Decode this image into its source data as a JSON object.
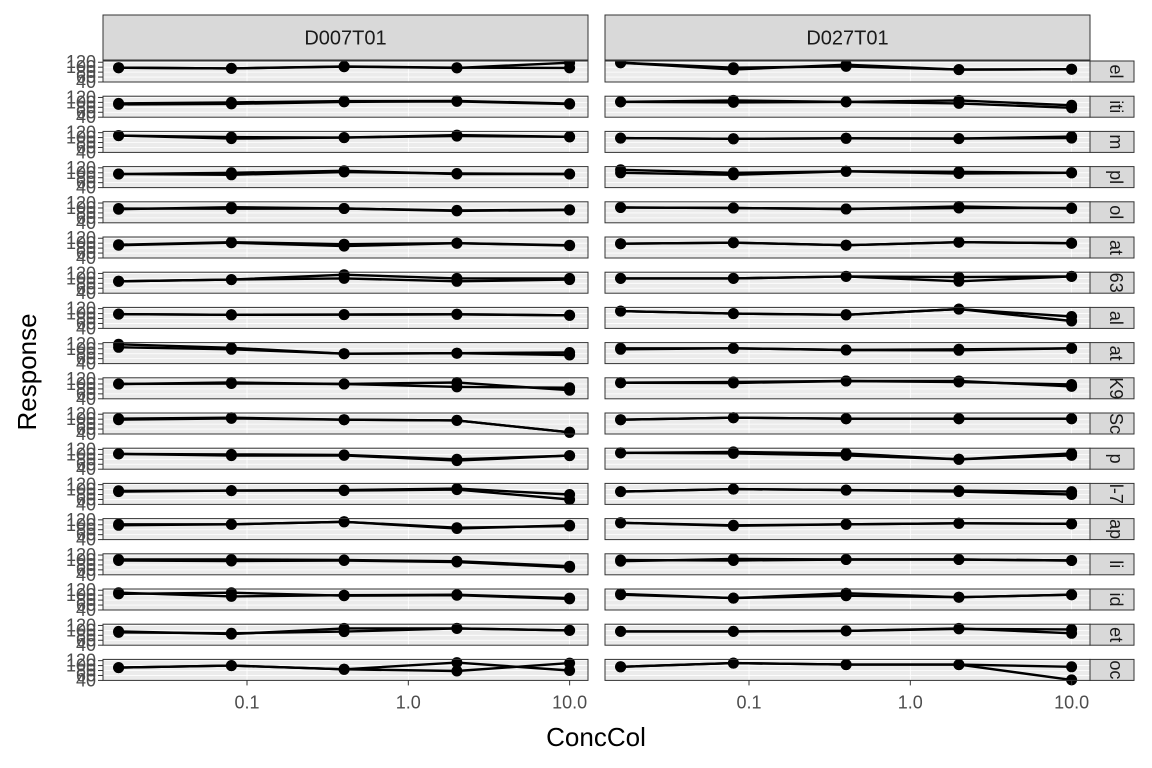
{
  "chart_data": {
    "type": "line",
    "xlabel": "ConcCol",
    "ylabel": "Response",
    "x_scale": "log10",
    "xlim": [
      0.0128,
      13
    ],
    "ylim": [
      40,
      125
    ],
    "x_ticks": [
      0.1,
      1.0,
      10.0
    ],
    "x_tick_labels": [
      "0.1",
      "1.0",
      "10.0"
    ],
    "y_ticks": [
      40,
      60,
      80,
      100,
      120
    ],
    "y_tick_labels": [
      "40",
      "60",
      "80",
      "100",
      "120"
    ],
    "concentrations": [
      0.016,
      0.08,
      0.4,
      2.0,
      10.0
    ],
    "grid": true,
    "legend": "none",
    "colors": {
      "panel_bg": "#ebebeb",
      "strip_bg": "#d9d9d9",
      "border": "#333333",
      "grid_major": "#ffffff",
      "line": "#000000"
    },
    "column_facets": [
      "D007T01",
      "D027T01"
    ],
    "row_facets": [
      "el",
      "iti",
      "m",
      "pl",
      "ol",
      "at",
      "63",
      "al",
      "at",
      "K9",
      "Sc",
      "p",
      "l-7",
      "ap",
      "li",
      "id",
      "et",
      "oc"
    ],
    "panels": [
      [
        {
          "series": [
            [
              98,
              95,
              103,
              98,
              97
            ],
            [
              98,
              95,
              102,
              97,
              118
            ]
          ]
        },
        {
          "series": [
            [
              96,
              100,
              105,
              106,
              95
            ],
            [
              92,
              94,
              102,
              104,
              93
            ]
          ]
        },
        {
          "series": [
            [
              108,
              96,
              100,
              106,
              103
            ],
            [
              108,
              102,
              100,
              110,
              103
            ]
          ]
        },
        {
          "series": [
            [
              95,
              100,
              108,
              95,
              95
            ],
            [
              95,
              92,
              103,
              97,
              95
            ]
          ]
        },
        {
          "series": [
            [
              95,
              103,
              98,
              88,
              92
            ],
            [
              98,
              97,
              98,
              90,
              93
            ]
          ]
        },
        {
          "series": [
            [
              92,
              102,
              88,
              100,
              92
            ],
            [
              94,
              104,
              96,
              100,
              90
            ]
          ]
        },
        {
          "series": [
            [
              88,
              95,
              115,
              100,
              100
            ],
            [
              88,
              95,
              100,
              88,
              95
            ]
          ]
        },
        {
          "series": [
            [
              98,
              95,
              96,
              97,
              93
            ],
            [
              98,
              95,
              96,
              97,
              93
            ]
          ]
        },
        {
          "series": [
            [
              118,
              104,
              80,
              82,
              85
            ],
            [
              106,
              98,
              80,
              82,
              75
            ]
          ]
        },
        {
          "series": [
            [
              100,
              102,
              100,
              106,
              75
            ],
            [
              100,
              106,
              100,
              88,
              85
            ]
          ]
        },
        {
          "series": [
            [
              102,
              106,
              98,
              95,
              47
            ],
            [
              98,
              103,
              98,
              95,
              47
            ]
          ]
        },
        {
          "series": [
            [
              102,
              100,
              98,
              80,
              95
            ],
            [
              102,
              95,
              96,
              75,
              95
            ]
          ]
        },
        {
          "series": [
            [
              92,
              96,
              98,
              104,
              80
            ],
            [
              95,
              96,
              96,
              100,
              60
            ]
          ]
        },
        {
          "series": [
            [
              102,
              102,
              112,
              85,
              98
            ],
            [
              98,
              102,
              112,
              88,
              95
            ]
          ]
        },
        {
          "series": [
            [
              102,
              102,
              100,
              95,
              75
            ],
            [
              98,
              96,
              98,
              92,
              70
            ]
          ]
        },
        {
          "series": [
            [
              110,
              95,
              100,
              102,
              88
            ],
            [
              105,
              110,
              98,
              100,
              85
            ]
          ]
        },
        {
          "series": [
            [
              96,
              85,
              108,
              108,
              100
            ],
            [
              92,
              88,
              95,
              108,
              100
            ]
          ]
        },
        {
          "series": [
            [
              92,
              100,
              85,
              112,
              80
            ],
            [
              92,
              100,
              85,
              78,
              110
            ]
          ]
        }
      ],
      [
        {
          "series": [
            [
              118,
              90,
              110,
              90,
              92
            ],
            [
              118,
              98,
              103,
              90,
              92
            ]
          ]
        },
        {
          "series": [
            [
              102,
              108,
              102,
              108,
              88
            ],
            [
              102,
              100,
              102,
              96,
              78
            ]
          ]
        },
        {
          "series": [
            [
              98,
              95,
              97,
              96,
              104
            ],
            [
              98,
              95,
              97,
              96,
              98
            ]
          ]
        },
        {
          "series": [
            [
              112,
              100,
              106,
              104,
              100
            ],
            [
              100,
              92,
              106,
              97,
              100
            ]
          ]
        },
        {
          "series": [
            [
              102,
              100,
              96,
              100,
              100
            ],
            [
              102,
              100,
              96,
              106,
              98
            ]
          ]
        },
        {
          "series": [
            [
              98,
              102,
              92,
              104,
              100
            ],
            [
              98,
              102,
              92,
              104,
              100
            ]
          ]
        },
        {
          "series": [
            [
              100,
              100,
              108,
              105,
              108
            ],
            [
              100,
              100,
              108,
              88,
              108
            ]
          ]
        },
        {
          "series": [
            [
              110,
              100,
              95,
              118,
              70
            ],
            [
              110,
              100,
              95,
              118,
              88
            ]
          ]
        },
        {
          "series": [
            [
              98,
              102,
              95,
              94,
              102
            ],
            [
              102,
              102,
              95,
              98,
              102
            ]
          ]
        },
        {
          "series": [
            [
              105,
              104,
              112,
              108,
              98
            ],
            [
              105,
              108,
              112,
              112,
              90
            ]
          ]
        },
        {
          "series": [
            [
              98,
              106,
              102,
              102,
              102
            ],
            [
              98,
              106,
              102,
              102,
              102
            ]
          ]
        },
        {
          "series": [
            [
              106,
              110,
              104,
              80,
              104
            ],
            [
              106,
              104,
              96,
              80,
              96
            ]
          ]
        },
        {
          "series": [
            [
              92,
              102,
              98,
              96,
              92
            ],
            [
              92,
              102,
              98,
              92,
              80
            ]
          ]
        },
        {
          "series": [
            [
              108,
              98,
              102,
              106,
              104
            ],
            [
              108,
              96,
              102,
              106,
              104
            ]
          ]
        },
        {
          "series": [
            [
              95,
              104,
              102,
              102,
              98
            ],
            [
              100,
              98,
              102,
              102,
              98
            ]
          ]
        },
        {
          "series": [
            [
              105,
              88,
              108,
              92,
              102
            ],
            [
              102,
              88,
              98,
              92,
              102
            ]
          ]
        },
        {
          "series": [
            [
              96,
              96,
              98,
              108,
              88
            ],
            [
              96,
              96,
              98,
              106,
              104
            ]
          ]
        },
        {
          "series": [
            [
              95,
              110,
              104,
              104,
              95
            ],
            [
              95,
              110,
              104,
              104,
              42
            ]
          ]
        }
      ]
    ]
  }
}
